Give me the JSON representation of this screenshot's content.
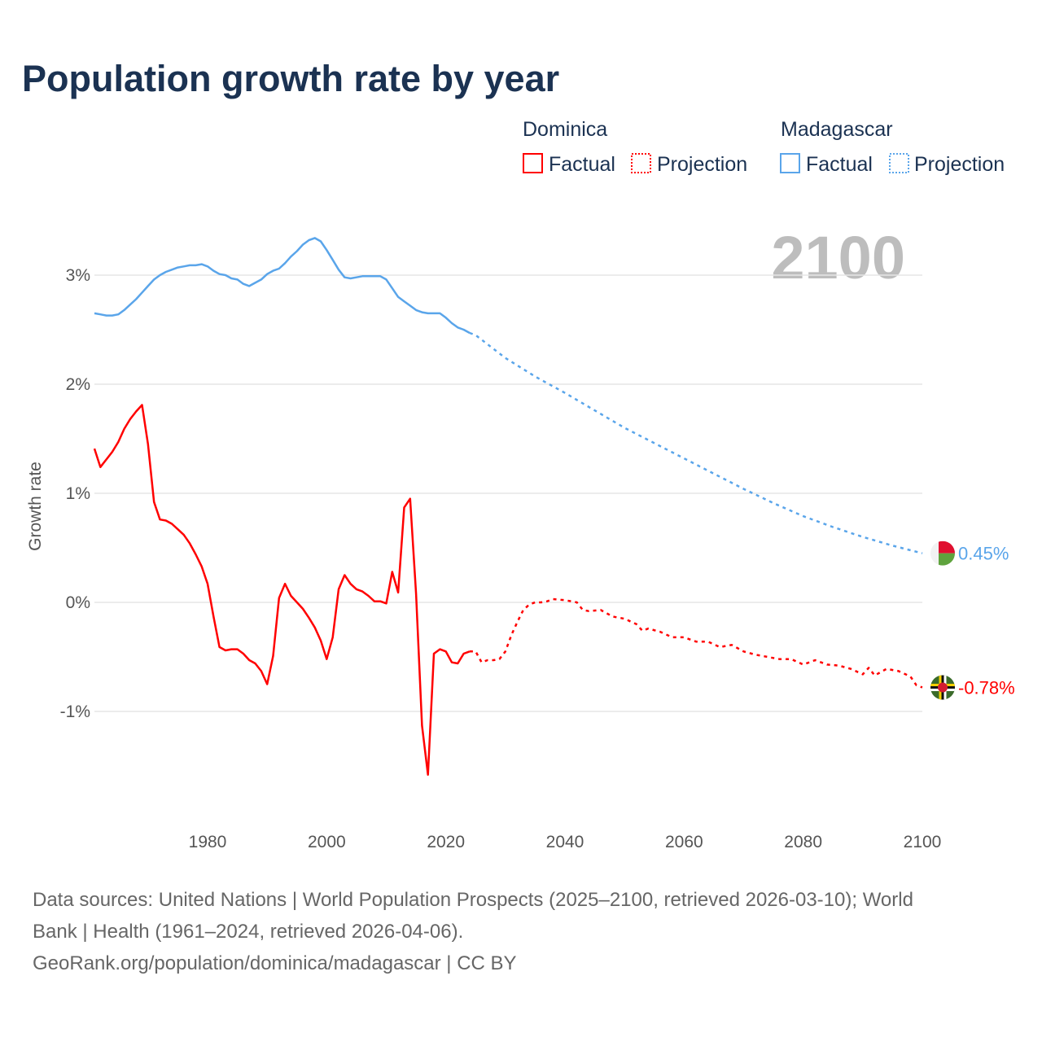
{
  "chart_data": {
    "type": "line",
    "title": "Population growth rate by year",
    "ylabel": "Growth rate",
    "xlabel": "",
    "xlim": [
      1961,
      2100
    ],
    "ylim": [
      -1.9,
      3.5
    ],
    "x_ticks": [
      "1980",
      "2000",
      "2020",
      "2040",
      "2060",
      "2080",
      "2100"
    ],
    "y_ticks": [
      {
        "v": 3,
        "label": "3%"
      },
      {
        "v": 2,
        "label": "2%"
      },
      {
        "v": 1,
        "label": "1%"
      },
      {
        "v": 0,
        "label": "0%"
      },
      {
        "v": -1,
        "label": "-1%"
      }
    ],
    "year_watermark": "2100",
    "legend": {
      "groups": [
        {
          "name": "Dominica",
          "factual": "Factual",
          "projection": "Projection",
          "color": "#ff0000"
        },
        {
          "name": "Madagascar",
          "factual": "Factual",
          "projection": "Projection",
          "color": "#5aa5ea"
        }
      ]
    },
    "series": [
      {
        "name": "Dominica",
        "kind": "factual",
        "color": "#ff0000",
        "start_year": 1961,
        "values": [
          1.41,
          1.24,
          1.31,
          1.38,
          1.47,
          1.59,
          1.68,
          1.75,
          1.81,
          1.45,
          0.92,
          0.76,
          0.75,
          0.72,
          0.67,
          0.62,
          0.54,
          0.44,
          0.33,
          0.17,
          -0.13,
          -0.41,
          -0.44,
          -0.43,
          -0.43,
          -0.47,
          -0.53,
          -0.56,
          -0.63,
          -0.75,
          -0.49,
          0.04,
          0.17,
          0.06,
          0.0,
          -0.06,
          -0.14,
          -0.23,
          -0.35,
          -0.52,
          -0.32,
          0.12,
          0.25,
          0.17,
          0.12,
          0.1,
          0.06,
          0.01,
          0.01,
          -0.01,
          0.28,
          0.09,
          0.87,
          0.95,
          0.08,
          -1.13,
          -1.58,
          -0.47,
          -0.43,
          -0.45,
          -0.55,
          -0.56,
          -0.47,
          -0.45
        ]
      },
      {
        "name": "Dominica",
        "kind": "projection",
        "color": "#ff0000",
        "x": [
          2024,
          2025,
          2026,
          2027,
          2028,
          2029,
          2030,
          2031,
          2032,
          2033,
          2034,
          2035,
          2036,
          2037,
          2038,
          2040,
          2042,
          2043,
          2044,
          2046,
          2048,
          2050,
          2052,
          2053,
          2054,
          2056,
          2058,
          2060,
          2062,
          2064,
          2066,
          2068,
          2070,
          2072,
          2074,
          2076,
          2078,
          2080,
          2082,
          2084,
          2086,
          2088,
          2090,
          2091,
          2092,
          2094,
          2096,
          2098,
          2099,
          2100
        ],
        "values": [
          -0.45,
          -0.45,
          -0.55,
          -0.53,
          -0.53,
          -0.52,
          -0.45,
          -0.3,
          -0.18,
          -0.07,
          -0.02,
          0.0,
          0.0,
          0.01,
          0.03,
          0.02,
          0.0,
          -0.07,
          -0.08,
          -0.07,
          -0.13,
          -0.15,
          -0.2,
          -0.26,
          -0.24,
          -0.27,
          -0.32,
          -0.32,
          -0.36,
          -0.36,
          -0.41,
          -0.39,
          -0.45,
          -0.48,
          -0.5,
          -0.52,
          -0.52,
          -0.57,
          -0.53,
          -0.57,
          -0.58,
          -0.61,
          -0.66,
          -0.6,
          -0.67,
          -0.61,
          -0.63,
          -0.68,
          -0.76,
          -0.78
        ]
      },
      {
        "name": "Madagascar",
        "kind": "factual",
        "color": "#5aa5ea",
        "start_year": 1961,
        "values": [
          2.65,
          2.64,
          2.63,
          2.63,
          2.64,
          2.68,
          2.73,
          2.78,
          2.84,
          2.9,
          2.96,
          3.0,
          3.03,
          3.05,
          3.07,
          3.08,
          3.09,
          3.09,
          3.1,
          3.08,
          3.04,
          3.01,
          3.0,
          2.97,
          2.96,
          2.92,
          2.9,
          2.93,
          2.96,
          3.01,
          3.04,
          3.06,
          3.11,
          3.17,
          3.22,
          3.28,
          3.32,
          3.34,
          3.31,
          3.23,
          3.14,
          3.05,
          2.98,
          2.97,
          2.98,
          2.99,
          2.99,
          2.99,
          2.99,
          2.96,
          2.88,
          2.8,
          2.76,
          2.72,
          2.68,
          2.66,
          2.65,
          2.65,
          2.65,
          2.61,
          2.56,
          2.52,
          2.5,
          2.47
        ]
      },
      {
        "name": "Madagascar",
        "kind": "projection",
        "color": "#5aa5ea",
        "x": [
          2024,
          2025,
          2030,
          2035,
          2040,
          2045,
          2050,
          2055,
          2060,
          2065,
          2070,
          2075,
          2080,
          2085,
          2090,
          2095,
          2100
        ],
        "values": [
          2.47,
          2.45,
          2.24,
          2.07,
          1.92,
          1.76,
          1.6,
          1.46,
          1.32,
          1.18,
          1.04,
          0.91,
          0.79,
          0.69,
          0.6,
          0.52,
          0.45
        ]
      }
    ],
    "end_labels": [
      {
        "name": "Madagascar",
        "label": "0.45%",
        "value": 0.45,
        "color": "#5aa5ea"
      },
      {
        "name": "Dominica",
        "label": "-0.78%",
        "value": -0.78,
        "color": "#ff0000"
      }
    ]
  },
  "footer": {
    "line1": "Data sources: United Nations | World Population Prospects (2025–2100, retrieved 2026-03-10); World",
    "line2": "Bank | Health (1961–2024, retrieved 2026-04-06).",
    "line3": "GeoRank.org/population/dominica/madagascar | CC BY"
  }
}
